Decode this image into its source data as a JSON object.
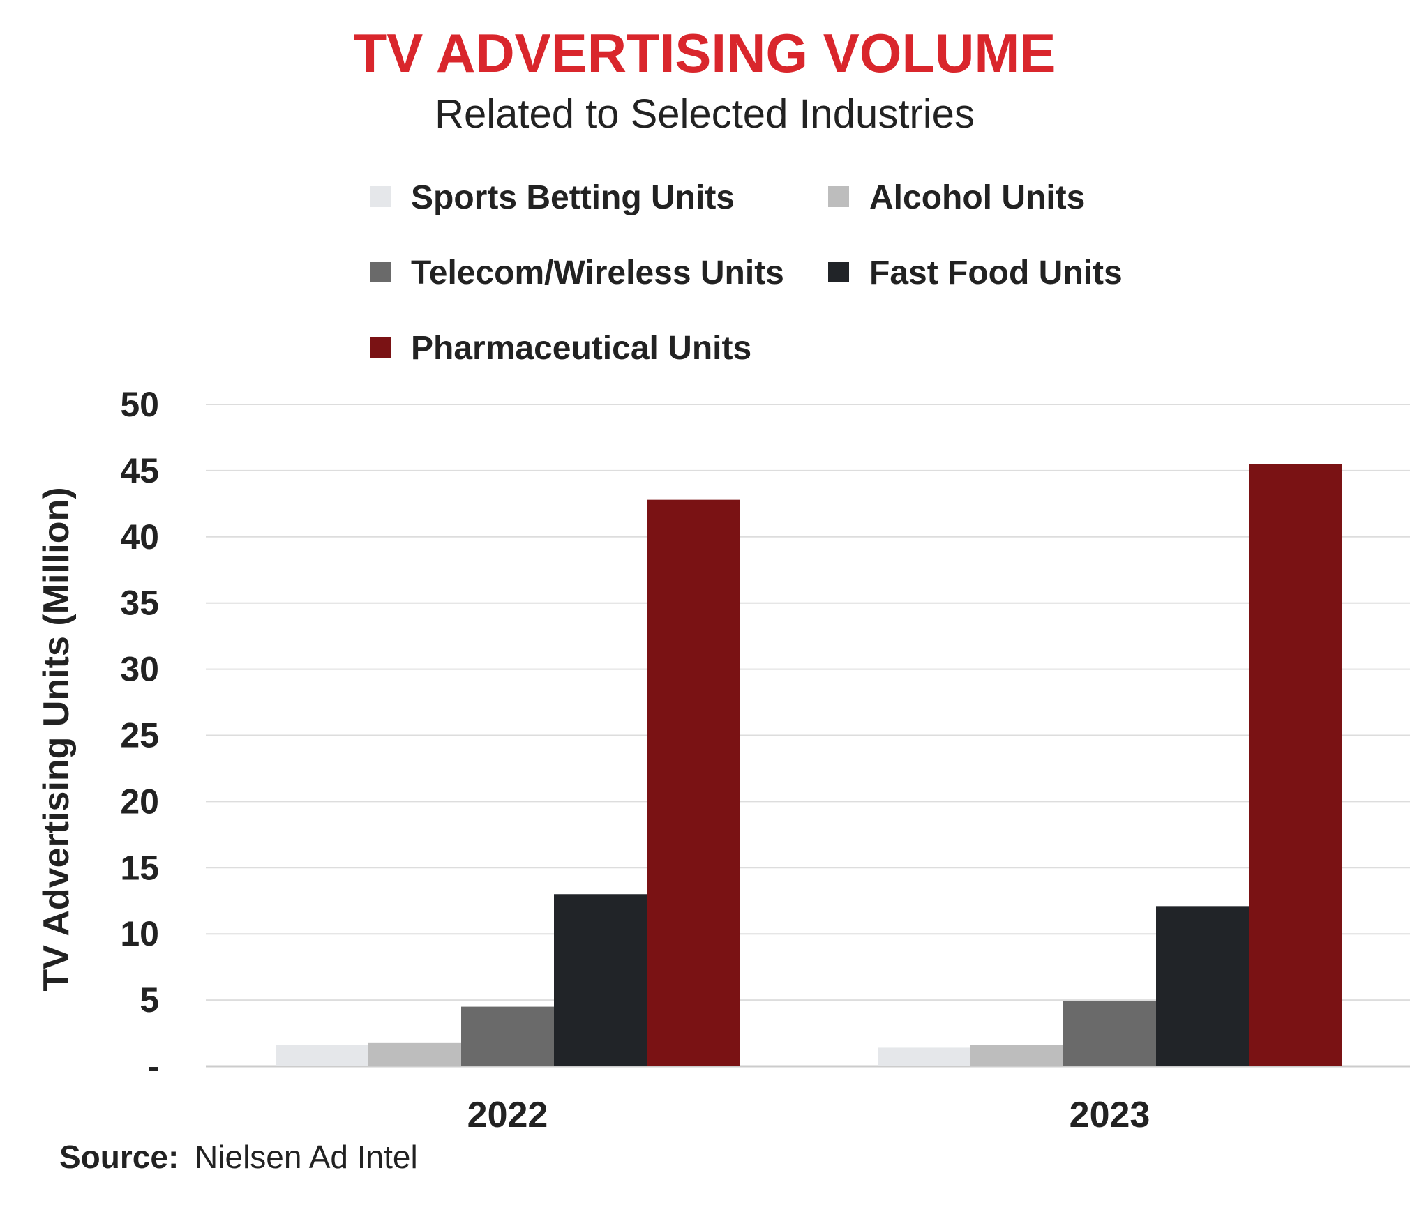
{
  "chart_data": {
    "type": "bar",
    "title": "TV ADVERTISING VOLUME",
    "subtitle": "Related to Selected Industries",
    "ylabel": "TV Advertising Units (Million)",
    "xlabel": "",
    "categories": [
      "2022",
      "2023"
    ],
    "ylim": [
      0,
      50
    ],
    "yticks": [
      {
        "value": 0,
        "label": "-"
      },
      {
        "value": 5,
        "label": "5"
      },
      {
        "value": 10,
        "label": "10"
      },
      {
        "value": 15,
        "label": "15"
      },
      {
        "value": 20,
        "label": "20"
      },
      {
        "value": 25,
        "label": "25"
      },
      {
        "value": 30,
        "label": "30"
      },
      {
        "value": 35,
        "label": "35"
      },
      {
        "value": 40,
        "label": "40"
      },
      {
        "value": 45,
        "label": "45"
      },
      {
        "value": 50,
        "label": "50"
      }
    ],
    "grid": true,
    "legend_position": "top",
    "series": [
      {
        "name": "Sports Betting Units",
        "color": "#e5e7ea",
        "values": [
          1.6,
          1.4
        ]
      },
      {
        "name": "Alcohol Units",
        "color": "#bdbdbd",
        "values": [
          1.8,
          1.6
        ]
      },
      {
        "name": "Telecom/Wireless Units",
        "color": "#6a6a6a",
        "values": [
          4.5,
          4.9
        ]
      },
      {
        "name": "Fast Food Units",
        "color": "#212428",
        "values": [
          13.0,
          12.1
        ]
      },
      {
        "name": "Pharmaceutical Units",
        "color": "#7a1214",
        "values": [
          42.8,
          45.5
        ]
      }
    ]
  },
  "source": {
    "label": "Source:",
    "text": "Nielsen Ad Intel"
  },
  "colors": {
    "title": "#d9262c",
    "text": "#222222",
    "grid": "#dddddd"
  }
}
